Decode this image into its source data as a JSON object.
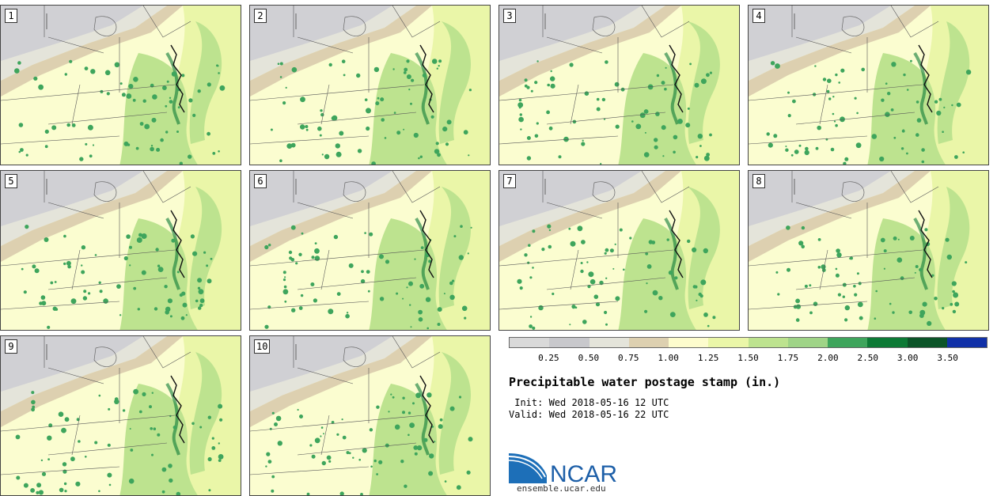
{
  "stamps": [
    {
      "label": "1"
    },
    {
      "label": "2"
    },
    {
      "label": "3"
    },
    {
      "label": "4"
    },
    {
      "label": "5"
    },
    {
      "label": "6"
    },
    {
      "label": "7"
    },
    {
      "label": "8"
    },
    {
      "label": "9"
    },
    {
      "label": "10"
    }
  ],
  "colorbar": {
    "ticks": [
      "0.25",
      "0.50",
      "0.75",
      "1.00",
      "1.25",
      "1.50",
      "1.75",
      "2.00",
      "2.50",
      "3.00",
      "3.50"
    ],
    "colors": [
      "#d9d9d9",
      "#c8c8cc",
      "#e4e4da",
      "#ddd0b0",
      "#fdfccd",
      "#eaf6a8",
      "#bde38f",
      "#9fd487",
      "#3ea55c",
      "#0c7a35",
      "#0b5428",
      "#1030a8"
    ]
  },
  "title": "Precipitable water postage stamp (in.)",
  "init": " Init: Wed 2018-05-16 12 UTC",
  "valid": "Valid: Wed 2018-05-16 22 UTC",
  "logo": {
    "text": "NCAR",
    "url": "ensemble.ucar.edu",
    "color": "#1d5fa8"
  }
}
